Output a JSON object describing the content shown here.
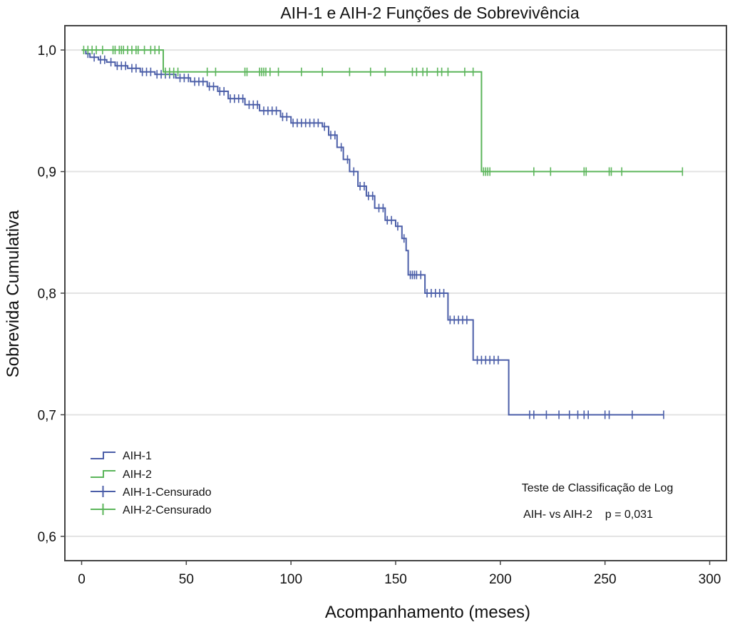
{
  "chart_data": {
    "type": "line",
    "subtype": "kaplan-meier",
    "title": "AIH-1 e AIH-2 Funções de Sobrevivência",
    "xlabel": "Acompanhamento (meses)",
    "ylabel": "Sobrevida Cumulativa",
    "xlim": [
      -8,
      308
    ],
    "ylim": [
      0.58,
      1.02
    ],
    "x_ticks": [
      0,
      50,
      100,
      150,
      200,
      250,
      300
    ],
    "y_ticks": [
      0.6,
      0.7,
      0.8,
      0.9,
      1.0
    ],
    "x_tick_labels": [
      "0",
      "50",
      "100",
      "150",
      "200",
      "250",
      "300"
    ],
    "y_tick_labels": [
      "0,6",
      "0,7",
      "0,8",
      "0,9",
      "1,0"
    ],
    "grid": "horizontal",
    "legend_position": "bottom-left",
    "legend": [
      "AIH-1",
      "AIH-2",
      "AIH-1-Censurado",
      "AIH-2-Censurado"
    ],
    "annotation": {
      "line1": "Teste de Classificação de Log",
      "line2": "AIH- vs AIH-2    p = 0,031"
    },
    "series": [
      {
        "name": "AIH-1",
        "color": "#4b5ea8",
        "step": [
          [
            0,
            1.0
          ],
          [
            2,
            0.997
          ],
          [
            4,
            0.994
          ],
          [
            8,
            0.992
          ],
          [
            12,
            0.99
          ],
          [
            16,
            0.987
          ],
          [
            22,
            0.985
          ],
          [
            28,
            0.982
          ],
          [
            35,
            0.98
          ],
          [
            45,
            0.977
          ],
          [
            52,
            0.974
          ],
          [
            60,
            0.97
          ],
          [
            65,
            0.966
          ],
          [
            70,
            0.96
          ],
          [
            78,
            0.955
          ],
          [
            85,
            0.95
          ],
          [
            95,
            0.945
          ],
          [
            100,
            0.94
          ],
          [
            115,
            0.937
          ],
          [
            118,
            0.93
          ],
          [
            122,
            0.92
          ],
          [
            125,
            0.91
          ],
          [
            128,
            0.9
          ],
          [
            132,
            0.888
          ],
          [
            136,
            0.88
          ],
          [
            140,
            0.87
          ],
          [
            145,
            0.86
          ],
          [
            150,
            0.855
          ],
          [
            153,
            0.845
          ],
          [
            155,
            0.835
          ],
          [
            156,
            0.815
          ],
          [
            164,
            0.8
          ],
          [
            175,
            0.778
          ],
          [
            187,
            0.745
          ],
          [
            204,
            0.7
          ],
          [
            278,
            0.7
          ]
        ],
        "censored_x": [
          3,
          6,
          9,
          11,
          14,
          17,
          19,
          21,
          24,
          26,
          29,
          31,
          33,
          36,
          38,
          40,
          42,
          44,
          47,
          49,
          51,
          54,
          56,
          58,
          61,
          63,
          66,
          68,
          71,
          73,
          75,
          77,
          80,
          82,
          84,
          87,
          89,
          91,
          93,
          96,
          98,
          101,
          103,
          105,
          107,
          109,
          111,
          113,
          116,
          119,
          121,
          124,
          127,
          130,
          133,
          135,
          137,
          139,
          142,
          144,
          146,
          148,
          151,
          154,
          157,
          158,
          159,
          160,
          162,
          165,
          167,
          169,
          171,
          173,
          176,
          178,
          180,
          182,
          184,
          189,
          191,
          193,
          195,
          197,
          199,
          214,
          216,
          222,
          228,
          233,
          237,
          240,
          242,
          250,
          252,
          263,
          278
        ]
      },
      {
        "name": "AIH-2",
        "color": "#5bb55a",
        "step": [
          [
            0,
            1.0
          ],
          [
            39,
            0.982
          ],
          [
            191,
            0.9
          ],
          [
            287,
            0.9
          ]
        ],
        "censored_x": [
          1,
          3,
          5,
          7,
          10,
          15,
          16,
          18,
          19,
          20,
          22,
          24,
          26,
          27,
          30,
          33,
          35,
          37,
          40,
          42,
          44,
          46,
          60,
          64,
          78,
          79,
          85,
          86,
          87,
          88,
          90,
          94,
          105,
          115,
          128,
          138,
          145,
          158,
          160,
          163,
          165,
          170,
          172,
          175,
          183,
          187,
          192,
          193,
          194,
          195,
          216,
          224,
          240,
          241,
          252,
          253,
          258,
          287
        ]
      }
    ]
  }
}
